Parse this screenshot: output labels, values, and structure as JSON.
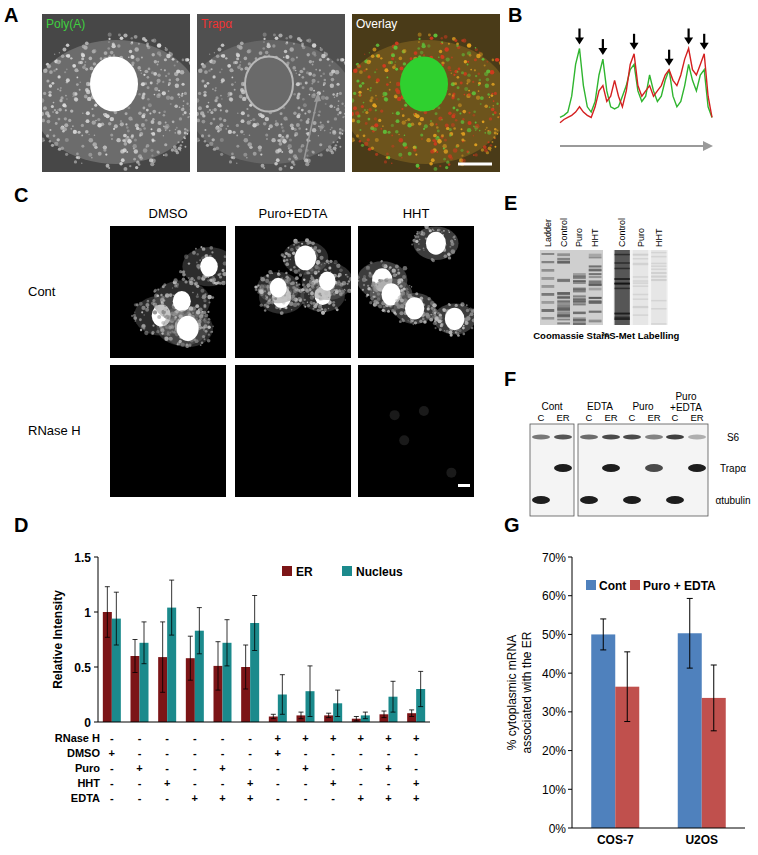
{
  "panels": {
    "A": {
      "label": "A",
      "images": [
        "Poly(A)",
        "Trapα",
        "Overlay"
      ]
    },
    "B": {
      "label": "B"
    },
    "C": {
      "label": "C",
      "columns": [
        "DMSO",
        "Puro+EDTA",
        "HHT"
      ],
      "rows": [
        "Cont",
        "RNase H"
      ]
    },
    "D": {
      "label": "D"
    },
    "E": {
      "label": "E",
      "gels": [
        {
          "lanes": [
            "Ladder",
            "Control",
            "Puro",
            "HHT"
          ],
          "caption": "Coomassie Stain"
        },
        {
          "lanes": [
            "Control",
            "Puro",
            "HHT"
          ],
          "caption": "³⁵S-Met Labelling"
        }
      ]
    },
    "F": {
      "label": "F",
      "groups": [
        "Cont",
        "EDTA",
        "Puro",
        "Puro +EDTA"
      ],
      "fractions": [
        "C",
        "ER"
      ],
      "rows": [
        "S6",
        "Trapα",
        "αtubulin"
      ]
    },
    "G": {
      "label": "G"
    }
  },
  "chart_data": [
    {
      "type": "line",
      "tick_labels": false,
      "ylim": [
        0,
        1
      ],
      "series": [
        {
          "name": "Poly(A)",
          "color": "#2fb52f",
          "values": [
            0.1,
            0.12,
            0.15,
            0.3,
            0.6,
            0.75,
            0.4,
            0.2,
            0.15,
            0.25,
            0.5,
            0.65,
            0.35,
            0.2,
            0.18,
            0.2,
            0.3,
            0.4,
            0.55,
            0.6,
            0.35,
            0.25,
            0.3,
            0.5,
            0.35,
            0.25,
            0.3,
            0.45,
            0.55,
            0.3,
            0.2,
            0.25,
            0.4,
            0.6,
            0.45,
            0.35,
            0.5,
            0.55,
            0.2,
            0.1
          ]
        },
        {
          "name": "Trapα",
          "color": "#d42020",
          "values": [
            0.05,
            0.08,
            0.1,
            0.12,
            0.15,
            0.2,
            0.15,
            0.12,
            0.1,
            0.2,
            0.35,
            0.4,
            0.25,
            0.3,
            0.45,
            0.3,
            0.2,
            0.35,
            0.6,
            0.7,
            0.4,
            0.3,
            0.35,
            0.4,
            0.3,
            0.35,
            0.4,
            0.5,
            0.55,
            0.45,
            0.4,
            0.5,
            0.65,
            0.75,
            0.55,
            0.5,
            0.6,
            0.7,
            0.3,
            0.1
          ]
        }
      ],
      "arrows": [
        5,
        11,
        19,
        28,
        33,
        37
      ]
    },
    {
      "type": "bar",
      "ylabel": "Relative Intensity",
      "ylim": [
        0,
        1.5
      ],
      "yticks": [
        0,
        0.5,
        1,
        1.5
      ],
      "legend": "top-right",
      "categories": [
        null,
        null,
        null,
        null,
        null,
        null,
        null,
        null,
        null,
        null,
        null,
        null
      ],
      "series": [
        {
          "name": "ER",
          "color": "#7c1517",
          "values": [
            1.0,
            0.6,
            0.59,
            0.58,
            0.51,
            0.5,
            0.05,
            0.06,
            0.06,
            0.03,
            0.07,
            0.08
          ],
          "errors": [
            0.23,
            0.15,
            0.32,
            0.2,
            0.22,
            0.2,
            0.02,
            0.03,
            0.02,
            0.02,
            0.03,
            0.03
          ]
        },
        {
          "name": "Nucleus",
          "color": "#1b8a8c",
          "values": [
            0.94,
            0.72,
            1.04,
            0.83,
            0.72,
            0.9,
            0.25,
            0.28,
            0.17,
            0.06,
            0.23,
            0.3
          ],
          "errors": [
            0.24,
            0.19,
            0.25,
            0.21,
            0.21,
            0.25,
            0.18,
            0.23,
            0.12,
            0.03,
            0.14,
            0.16
          ]
        }
      ],
      "conditions": [
        {
          "name": "RNase H",
          "marks": [
            "-",
            "-",
            "-",
            "-",
            "-",
            "-",
            "+",
            "+",
            "+",
            "+",
            "+",
            "+"
          ]
        },
        {
          "name": "DMSO",
          "marks": [
            "+",
            "-",
            "-",
            "-",
            "-",
            "-",
            "+",
            "-",
            "-",
            "-",
            "-",
            "-"
          ]
        },
        {
          "name": "Puro",
          "marks": [
            "-",
            "+",
            "-",
            "-",
            "+",
            "-",
            "-",
            "+",
            "-",
            "-",
            "+",
            "-"
          ]
        },
        {
          "name": "HHT",
          "marks": [
            "-",
            "-",
            "+",
            "-",
            "-",
            "+",
            "-",
            "-",
            "+",
            "-",
            "-",
            "+"
          ]
        },
        {
          "name": "EDTA",
          "marks": [
            "-",
            "-",
            "-",
            "+",
            "+",
            "+",
            "-",
            "-",
            "-",
            "+",
            "+",
            "+"
          ]
        }
      ]
    },
    {
      "type": "bar",
      "ylabel": "% cytoplasmic mRNA associated with the ER",
      "ylim": [
        0,
        70
      ],
      "yticks": [
        {
          "value": 0,
          "label": "0%"
        },
        {
          "value": 10,
          "label": "10%"
        },
        {
          "value": 20,
          "label": "20%"
        },
        {
          "value": 30,
          "label": "30%"
        },
        {
          "value": 40,
          "label": "40%"
        },
        {
          "value": 50,
          "label": "50%"
        },
        {
          "value": 60,
          "label": "60%"
        },
        {
          "value": 70,
          "label": "70%"
        }
      ],
      "legend": "top",
      "categories": [
        "COS-7",
        "U2OS"
      ],
      "series": [
        {
          "name": "Cont",
          "color": "#4f81bd",
          "values": [
            50,
            50.3
          ],
          "errors": [
            4,
            9
          ]
        },
        {
          "name": "Puro + EDTA",
          "color": "#c0504d",
          "values": [
            36.5,
            33.6
          ],
          "errors": [
            9,
            8.5
          ]
        }
      ]
    }
  ]
}
